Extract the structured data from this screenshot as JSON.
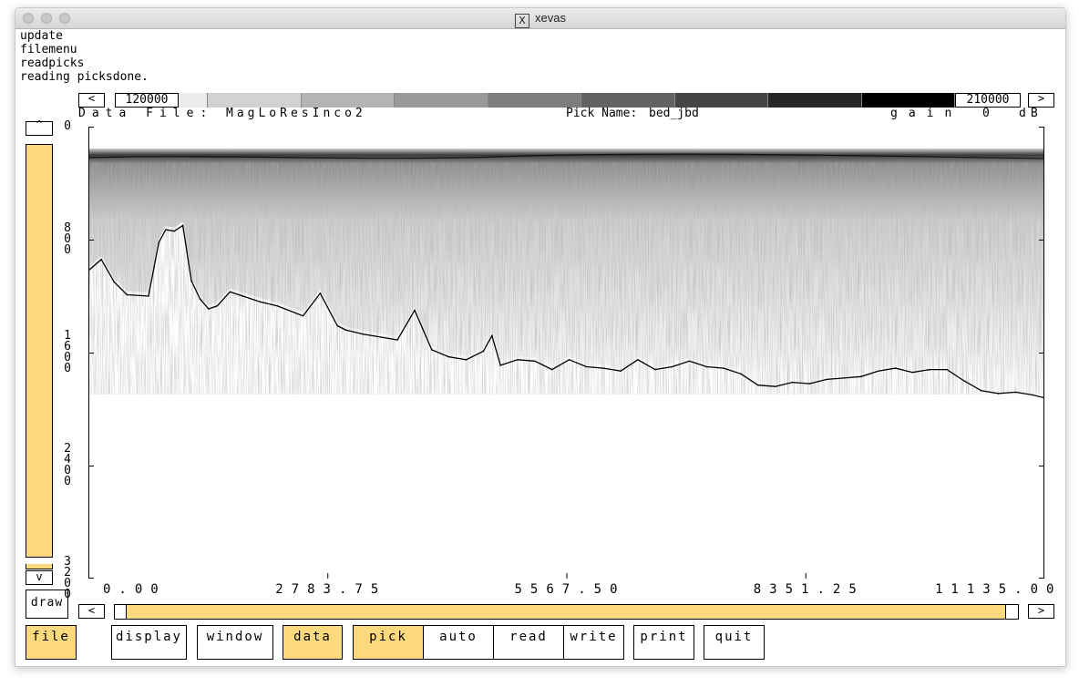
{
  "window": {
    "title": "xevas",
    "title_icon": "X"
  },
  "log_lines": [
    "update",
    "filemenu",
    "readpicks",
    "reading picksdone."
  ],
  "colorbar": {
    "left_arrow": "<",
    "right_arrow": ">",
    "min_label": "120000",
    "max_label": "210000",
    "swatches": [
      "#ececec",
      "#d2d2d2",
      "#b4b4b4",
      "#999999",
      "#7d7d7d",
      "#636363",
      "#454545",
      "#262626",
      "#000000"
    ]
  },
  "info": {
    "data_file_label": "Data File:",
    "data_file": "MagLoResInco2",
    "pick_name_label": "Pick Name:",
    "pick_name": "bed_jbd",
    "gain_label": "gain",
    "gain_value": "0",
    "gain_unit": "dB"
  },
  "vscroll": {
    "up_arrow": "^",
    "down_arrow": "v",
    "draw_label": "draw"
  },
  "hscroll": {
    "left_arrow": "<",
    "right_arrow": ">"
  },
  "y_axis_labels": [
    {
      "value": 0,
      "text": "0"
    },
    {
      "value": 800,
      "text": "800"
    },
    {
      "value": 1600,
      "text": "1600"
    },
    {
      "value": 2400,
      "text": "2400"
    },
    {
      "value": 3200,
      "text": "3200"
    }
  ],
  "x_axis_labels": [
    {
      "value": 0,
      "text": "0.00"
    },
    {
      "value": 2783.75,
      "text": "2783.75"
    },
    {
      "value": 5567.5,
      "text": "5567.50"
    },
    {
      "value": 8351.25,
      "text": "8351.25"
    },
    {
      "value": 11135,
      "text": "11135.00"
    }
  ],
  "chart_data": {
    "type": "line",
    "title": "",
    "xlabel": "",
    "ylabel": "",
    "xlim": [
      0,
      11135
    ],
    "ylim": [
      0,
      3200
    ],
    "series": [
      {
        "name": "bed_jbd",
        "x": [
          0,
          150,
          300,
          450,
          700,
          820,
          900,
          1000,
          1100,
          1200,
          1300,
          1400,
          1500,
          1650,
          1800,
          2000,
          2200,
          2500,
          2700,
          2900,
          3000,
          3200,
          3600,
          3800,
          4000,
          4200,
          4400,
          4600,
          4700,
          4800,
          5000,
          5200,
          5400,
          5600,
          5800,
          6000,
          6200,
          6400,
          6600,
          6800,
          7000,
          7200,
          7400,
          7600,
          7800,
          8000,
          8200,
          8400,
          8600,
          8800,
          9000,
          9200,
          9400,
          9600,
          9800,
          10000,
          10200,
          10400,
          10600,
          10800,
          11000,
          11135
        ],
        "values": [
          1020,
          940,
          1100,
          1190,
          1200,
          820,
          730,
          740,
          700,
          1090,
          1220,
          1290,
          1270,
          1170,
          1200,
          1240,
          1270,
          1340,
          1180,
          1410,
          1440,
          1470,
          1510,
          1300,
          1580,
          1630,
          1650,
          1590,
          1480,
          1690,
          1650,
          1660,
          1720,
          1650,
          1700,
          1710,
          1730,
          1650,
          1720,
          1700,
          1660,
          1700,
          1710,
          1750,
          1830,
          1840,
          1810,
          1820,
          1790,
          1780,
          1770,
          1730,
          1710,
          1740,
          1720,
          1720,
          1800,
          1870,
          1890,
          1880,
          1900,
          1920
        ]
      }
    ]
  }
}
